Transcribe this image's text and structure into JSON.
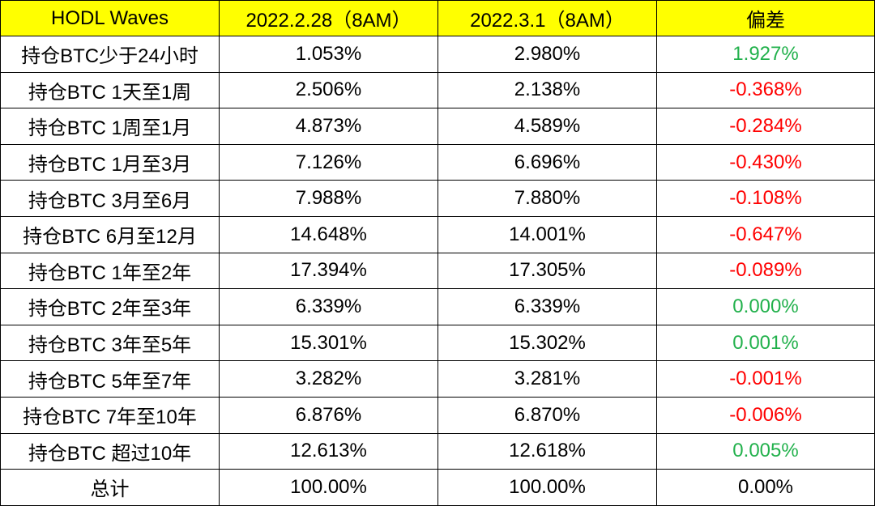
{
  "table": {
    "headers": [
      "HODL Waves",
      "2022.2.28（8AM）",
      "2022.3.1（8AM）",
      "偏差"
    ],
    "rows": [
      {
        "label": "持仓BTC少于24小时",
        "feb28": "1.053%",
        "mar1": "2.980%",
        "diff": "1.927%",
        "tone": "pos"
      },
      {
        "label": "持仓BTC 1天至1周",
        "feb28": "2.506%",
        "mar1": "2.138%",
        "diff": "-0.368%",
        "tone": "neg"
      },
      {
        "label": "持仓BTC 1周至1月",
        "feb28": "4.873%",
        "mar1": "4.589%",
        "diff": "-0.284%",
        "tone": "neg"
      },
      {
        "label": "持仓BTC 1月至3月",
        "feb28": "7.126%",
        "mar1": "6.696%",
        "diff": "-0.430%",
        "tone": "neg"
      },
      {
        "label": "持仓BTC 3月至6月",
        "feb28": "7.988%",
        "mar1": "7.880%",
        "diff": "-0.108%",
        "tone": "neg"
      },
      {
        "label": "持仓BTC 6月至12月",
        "feb28": "14.648%",
        "mar1": "14.001%",
        "diff": "-0.647%",
        "tone": "neg"
      },
      {
        "label": "持仓BTC 1年至2年",
        "feb28": "17.394%",
        "mar1": "17.305%",
        "diff": "-0.089%",
        "tone": "neg"
      },
      {
        "label": "持仓BTC 2年至3年",
        "feb28": "6.339%",
        "mar1": "6.339%",
        "diff": "0.000%",
        "tone": "pos"
      },
      {
        "label": "持仓BTC 3年至5年",
        "feb28": "15.301%",
        "mar1": "15.302%",
        "diff": "0.001%",
        "tone": "pos"
      },
      {
        "label": "持仓BTC 5年至7年",
        "feb28": "3.282%",
        "mar1": "3.281%",
        "diff": "-0.001%",
        "tone": "neg"
      },
      {
        "label": "持仓BTC 7年至10年",
        "feb28": "6.876%",
        "mar1": "6.870%",
        "diff": "-0.006%",
        "tone": "neg"
      },
      {
        "label": "持仓BTC 超过10年",
        "feb28": "12.613%",
        "mar1": "12.618%",
        "diff": "0.005%",
        "tone": "pos"
      },
      {
        "label": "总计",
        "feb28": "100.00%",
        "mar1": "100.00%",
        "diff": "0.00%",
        "tone": "zero"
      }
    ]
  },
  "colors": {
    "header_bg": "#ffff00",
    "positive": "#22b14c",
    "negative": "#ff0000",
    "border": "#000000"
  }
}
